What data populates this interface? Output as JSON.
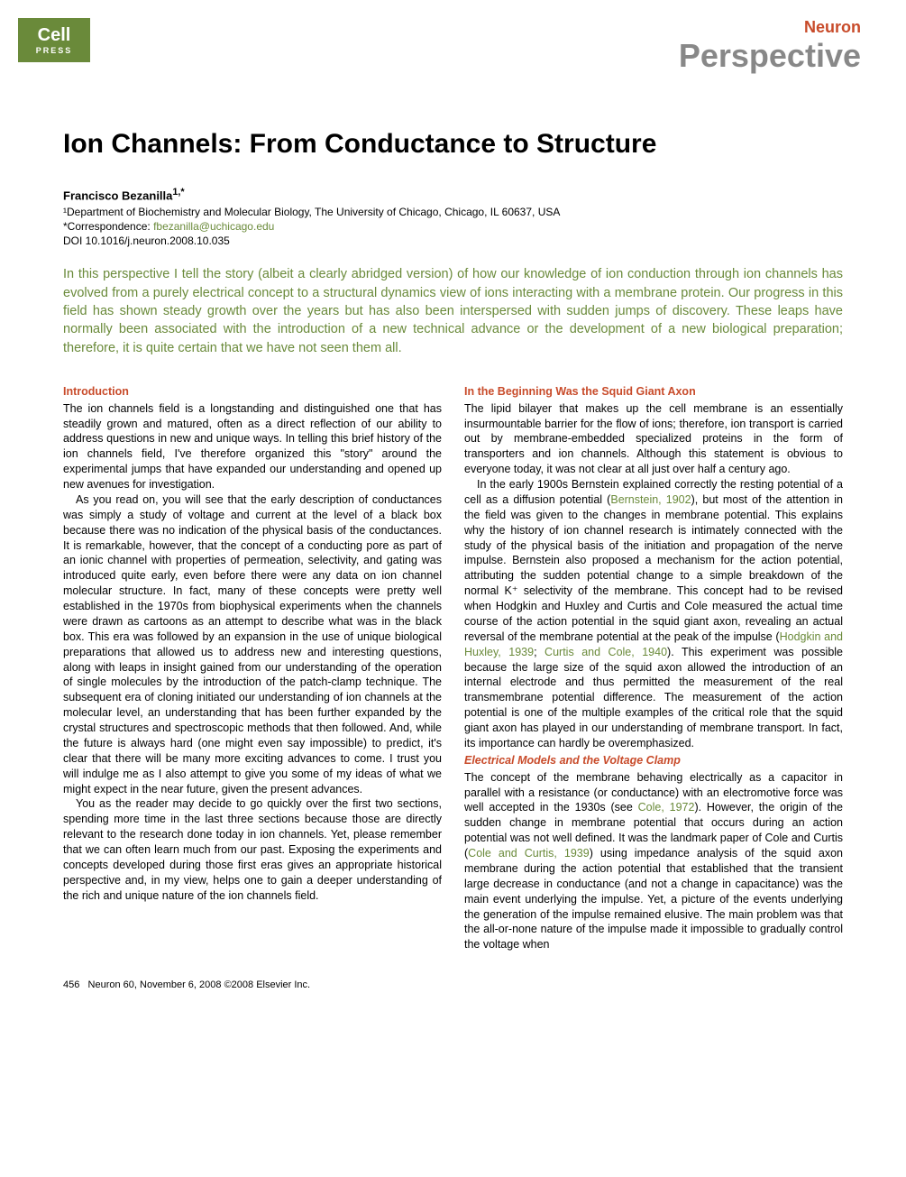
{
  "header": {
    "logo_main": "Cell",
    "logo_sub": "PRESS",
    "journal": "Neuron",
    "article_type": "Perspective"
  },
  "title": "Ion Channels: From Conductance to Structure",
  "authors": "Francisco Bezanilla",
  "author_sup": "1,*",
  "affiliation": "¹Department of Biochemistry and Molecular Biology, The University of Chicago, Chicago, IL 60637, USA",
  "correspondence_label": "*Correspondence: ",
  "email": "fbezanilla@uchicago.edu",
  "doi": "DOI 10.1016/j.neuron.2008.10.035",
  "abstract": "In this perspective I tell the story (albeit a clearly abridged version) of how our knowledge of ion conduction through ion channels has evolved from a purely electrical concept to a structural dynamics view of ions interacting with a membrane protein. Our progress in this field has shown steady growth over the years but has also been interspersed with sudden jumps of discovery. These leaps have normally been associated with the introduction of a new technical advance or the development of a new biological preparation; therefore, it is quite certain that we have not seen them all.",
  "left": {
    "heading1": "Introduction",
    "p1": "The ion channels field is a longstanding and distinguished one that has steadily grown and matured, often as a direct reflection of our ability to address questions in new and unique ways. In telling this brief history of the ion channels field, I've therefore organized this \"story\" around the experimental jumps that have expanded our understanding and opened up new avenues for investigation.",
    "p2": "As you read on, you will see that the early description of conductances was simply a study of voltage and current at the level of a black box because there was no indication of the physical basis of the conductances. It is remarkable, however, that the concept of a conducting pore as part of an ionic channel with properties of permeation, selectivity, and gating was introduced quite early, even before there were any data on ion channel molecular structure. In fact, many of these concepts were pretty well established in the 1970s from biophysical experiments when the channels were drawn as cartoons as an attempt to describe what was in the black box. This era was followed by an expansion in the use of unique biological preparations that allowed us to address new and interesting questions, along with leaps in insight gained from our understanding of the operation of single molecules by the introduction of the patch-clamp technique. The subsequent era of cloning initiated our understanding of ion channels at the molecular level, an understanding that has been further expanded by the crystal structures and spectroscopic methods that then followed. And, while the future is always hard (one might even say impossible) to predict, it's clear that there will be many more exciting advances to come. I trust you will indulge me as I also attempt to give you some of my ideas of what we might expect in the near future, given the present advances.",
    "p3": "You as the reader may decide to go quickly over the first two sections, spending more time in the last three sections because those are directly relevant to the research done today in ion channels. Yet, please remember that we can often learn much from our past. Exposing the experiments and concepts developed during those first eras gives an appropriate historical perspective and, in my view, helps one to gain a deeper understanding of the rich and unique nature of the ion channels field."
  },
  "right": {
    "heading1": "In the Beginning Was the Squid Giant Axon",
    "p1": "The lipid bilayer that makes up the cell membrane is an essentially insurmountable barrier for the flow of ions; therefore, ion transport is carried out by membrane-embedded specialized proteins in the form of transporters and ion channels. Although this statement is obvious to everyone today, it was not clear at all just over half a century ago.",
    "p2a": "In the early 1900s Bernstein explained correctly the resting potential of a cell as a diffusion potential (",
    "ref1": "Bernstein, 1902",
    "p2b": "), but most of the attention in the field was given to the changes in membrane potential. This explains why the history of ion channel research is intimately connected with the study of the physical basis of the initiation and propagation of the nerve impulse. Bernstein also proposed a mechanism for the action potential, attributing the sudden potential change to a simple breakdown of the normal K⁺ selectivity of the membrane. This concept had to be revised when Hodgkin and Huxley and Curtis and Cole measured the actual time course of the action potential in the squid giant axon, revealing an actual reversal of the membrane potential at the peak of the impulse (",
    "ref2": "Hodgkin and Huxley, 1939",
    "p2c": "; ",
    "ref3": "Curtis and Cole, 1940",
    "p2d": "). This experiment was possible because the large size of the squid axon allowed the introduction of an internal electrode and thus permitted the measurement of the real transmembrane potential difference. The measurement of the action potential is one of the multiple examples of the critical role that the squid giant axon has played in our understanding of membrane transport. In fact, its importance can hardly be overemphasized.",
    "subheading1": "Electrical Models and the Voltage Clamp",
    "p3a": "The concept of the membrane behaving electrically as a capacitor in parallel with a resistance (or conductance) with an electromotive force was well accepted in the 1930s (see ",
    "ref4": "Cole, 1972",
    "p3b": "). However, the origin of the sudden change in membrane potential that occurs during an action potential was not well defined. It was the landmark paper of Cole and Curtis (",
    "ref5": "Cole and Curtis, 1939",
    "p3c": ") using impedance analysis of the squid axon membrane during the action potential that established that the transient large decrease in conductance (and not a change in capacitance) was the main event underlying the impulse. Yet, a picture of the events underlying the generation of the impulse remained elusive. The main problem was that the all-or-none nature of the impulse made it impossible to gradually control the voltage when"
  },
  "footer": {
    "page": "456",
    "citation": "Neuron 60, November 6, 2008 ©2008 Elsevier Inc."
  },
  "colors": {
    "green": "#6a8a3a",
    "orange": "#c84b2a",
    "gray": "#888888"
  }
}
